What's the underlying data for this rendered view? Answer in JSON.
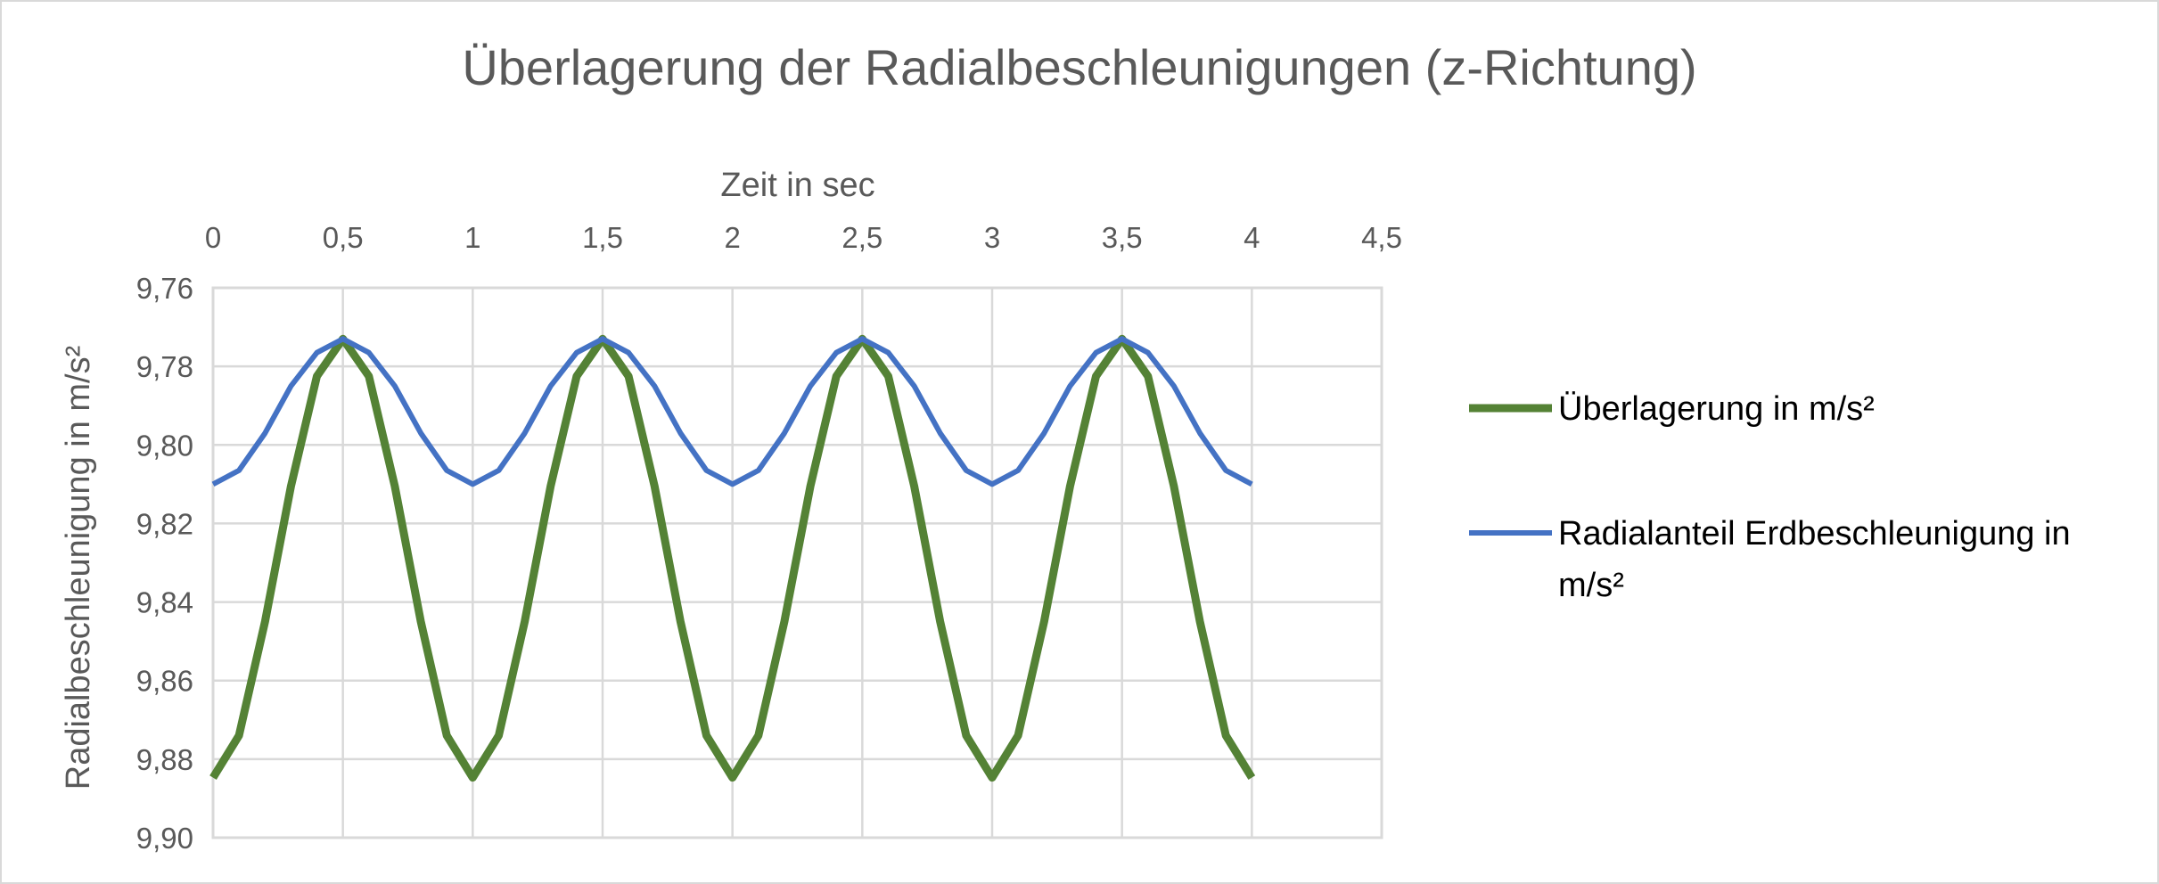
{
  "chart_data": {
    "type": "line",
    "title": "Überlagerung der Radialbeschleunigungen (z-Richtung)",
    "xlabel": "Zeit in sec",
    "ylabel": "Radialbeschleunigung in m/s²",
    "x_axis_position": "top",
    "y_axis_reversed": true,
    "xlim": [
      0,
      4.5
    ],
    "ylim": [
      9.76,
      9.9
    ],
    "x_ticks": [
      "0",
      "0,5",
      "1",
      "1,5",
      "2",
      "2,5",
      "3",
      "3,5",
      "4",
      "4,5"
    ],
    "y_ticks": [
      "9,76",
      "9,78",
      "9,80",
      "9,82",
      "9,84",
      "9,86",
      "9,88",
      "9,90"
    ],
    "grid": true,
    "legend_position": "right",
    "x": [
      0,
      0.1,
      0.2,
      0.3,
      0.4,
      0.5,
      0.6,
      0.7,
      0.8,
      0.9,
      1.0,
      1.1,
      1.2,
      1.3,
      1.4,
      1.5,
      1.6,
      1.7,
      1.8,
      1.9,
      2.0,
      2.1,
      2.2,
      2.3,
      2.4,
      2.5,
      2.6,
      2.7,
      2.8,
      2.9,
      3.0,
      3.1,
      3.2,
      3.3,
      3.4,
      3.5,
      3.6,
      3.7,
      3.8,
      3.9,
      4.0
    ],
    "series": [
      {
        "name": "Überlagerung in m/s²",
        "color": "#548235",
        "values": [
          9.8847,
          9.874,
          9.845,
          9.8105,
          9.7825,
          9.773,
          9.7825,
          9.8105,
          9.845,
          9.874,
          9.8847,
          9.874,
          9.845,
          9.8105,
          9.7825,
          9.773,
          9.7825,
          9.8105,
          9.845,
          9.874,
          9.8847,
          9.874,
          9.845,
          9.8105,
          9.7825,
          9.773,
          9.7825,
          9.8105,
          9.845,
          9.874,
          9.8847,
          9.874,
          9.845,
          9.8105,
          9.7825,
          9.773,
          9.7825,
          9.8105,
          9.845,
          9.874,
          9.8847
        ]
      },
      {
        "name": "Radialanteil Erdbeschleunigung in m/s²",
        "color": "#4472c4",
        "values": [
          9.81,
          9.8065,
          9.797,
          9.785,
          9.7765,
          9.773,
          9.7765,
          9.785,
          9.797,
          9.8065,
          9.81,
          9.8065,
          9.797,
          9.785,
          9.7765,
          9.773,
          9.7765,
          9.785,
          9.797,
          9.8065,
          9.81,
          9.8065,
          9.797,
          9.785,
          9.7765,
          9.773,
          9.7765,
          9.785,
          9.797,
          9.8065,
          9.81,
          9.8065,
          9.797,
          9.785,
          9.7765,
          9.773,
          9.7765,
          9.785,
          9.797,
          9.8065,
          9.81
        ]
      }
    ],
    "legend_lines": [
      [
        "Überlagerung in m/s²"
      ],
      [
        "Radialanteil Erdbeschleunigung in",
        "m/s²"
      ]
    ]
  }
}
